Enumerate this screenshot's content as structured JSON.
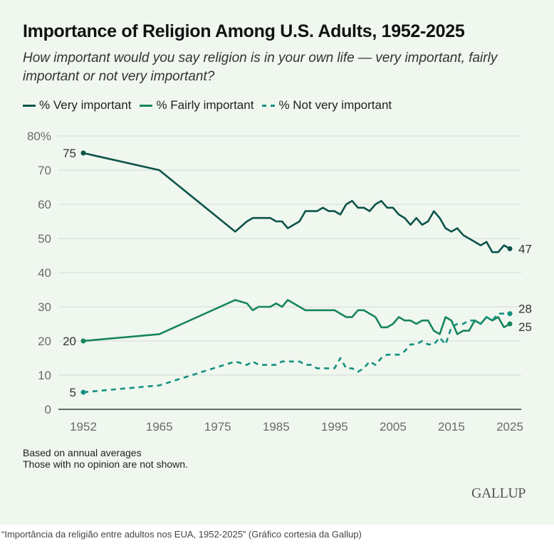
{
  "caption": "“Importância da religião entre adultos nos EUA, 1952-2025” (Gráfico cortesia da Gallup)",
  "logo": "GALLUP",
  "notes": [
    "Based on annual averages",
    "Those with no opinion are not shown."
  ],
  "colors": {
    "very": "#0b5348",
    "fairly": "#17855b",
    "not_very": "#13917e",
    "grid": "#dadfd9",
    "axis": "#5f6b63",
    "background": "#eff7ef"
  },
  "chart_data": {
    "type": "line",
    "title": "Importance of Religion Among U.S. Adults, 1952-2025",
    "subtitle": "How important would you say religion is in your own life — very important, fairly important or not very important?",
    "xlabel": "",
    "ylabel": "",
    "xlim": [
      1952,
      2025
    ],
    "ylim": [
      0,
      80
    ],
    "y_ticks": [
      0,
      10,
      20,
      30,
      40,
      50,
      60,
      70,
      80
    ],
    "y_tick_labels": [
      "0",
      "10",
      "20",
      "30",
      "40",
      "50",
      "60",
      "70",
      "80%"
    ],
    "x_ticks": [
      1952,
      1965,
      1975,
      1985,
      1995,
      2005,
      2015,
      2025
    ],
    "x_tick_labels": [
      "1952",
      "1965",
      "1975",
      "1985",
      "1995",
      "2005",
      "2015",
      "2025"
    ],
    "grid": true,
    "legend_position": "top-left",
    "series": [
      {
        "name": "% Very important",
        "key": "very",
        "style": "solid",
        "x": [
          1952,
          1965,
          1978,
          1980,
          1981,
          1982,
          1983,
          1984,
          1985,
          1986,
          1987,
          1988,
          1989,
          1990,
          1991,
          1992,
          1993,
          1994,
          1995,
          1996,
          1997,
          1998,
          1999,
          2000,
          2001,
          2002,
          2003,
          2004,
          2005,
          2006,
          2007,
          2008,
          2009,
          2010,
          2011,
          2012,
          2013,
          2014,
          2015,
          2016,
          2017,
          2018,
          2019,
          2020,
          2021,
          2022,
          2023,
          2024,
          2025
        ],
        "values": [
          75,
          70,
          52,
          55,
          56,
          56,
          56,
          56,
          55,
          55,
          53,
          54,
          55,
          58,
          58,
          58,
          59,
          58,
          58,
          57,
          60,
          61,
          59,
          59,
          58,
          60,
          61,
          59,
          59,
          57,
          56,
          54,
          56,
          54,
          55,
          58,
          56,
          53,
          52,
          53,
          51,
          50,
          49,
          48,
          49,
          46,
          46,
          48,
          47
        ],
        "start_label": "75",
        "end_label": "47"
      },
      {
        "name": "% Fairly important",
        "key": "fairly",
        "style": "solid",
        "x": [
          1952,
          1965,
          1978,
          1980,
          1981,
          1982,
          1983,
          1984,
          1985,
          1986,
          1987,
          1990,
          1995,
          1996,
          1997,
          1998,
          1999,
          2000,
          2001,
          2002,
          2003,
          2004,
          2005,
          2006,
          2007,
          2008,
          2009,
          2010,
          2011,
          2012,
          2013,
          2014,
          2015,
          2016,
          2017,
          2018,
          2019,
          2020,
          2021,
          2022,
          2023,
          2024,
          2025
        ],
        "values": [
          20,
          22,
          32,
          31,
          29,
          30,
          30,
          30,
          31,
          30,
          32,
          29,
          29,
          28,
          27,
          27,
          29,
          29,
          28,
          27,
          24,
          24,
          25,
          27,
          26,
          26,
          25,
          26,
          26,
          23,
          22,
          27,
          26,
          22,
          23,
          23,
          26,
          25,
          27,
          26,
          27,
          24,
          25
        ],
        "start_label": "20",
        "end_label": "25"
      },
      {
        "name": "% Not very important",
        "key": "not_very",
        "style": "dashed",
        "x": [
          1952,
          1965,
          1978,
          1980,
          1981,
          1982,
          1983,
          1984,
          1985,
          1986,
          1987,
          1988,
          1989,
          1990,
          1991,
          1992,
          1993,
          1994,
          1995,
          1996,
          1997,
          1998,
          1999,
          2000,
          2001,
          2002,
          2003,
          2004,
          2005,
          2006,
          2007,
          2008,
          2009,
          2010,
          2011,
          2012,
          2013,
          2014,
          2015,
          2016,
          2017,
          2018,
          2019,
          2020,
          2021,
          2022,
          2023,
          2024,
          2025
        ],
        "values": [
          5,
          7,
          14,
          13,
          14,
          13,
          13,
          13,
          13,
          14,
          14,
          14,
          14,
          13,
          13,
          12,
          12,
          12,
          12,
          15,
          12,
          12,
          11,
          12,
          14,
          13,
          15,
          16,
          16,
          16,
          17,
          19,
          19,
          20,
          19,
          19,
          21,
          19,
          24,
          25,
          25,
          26,
          26,
          25,
          27,
          26,
          28,
          28,
          28
        ],
        "start_label": "5",
        "end_label": "28"
      }
    ]
  }
}
